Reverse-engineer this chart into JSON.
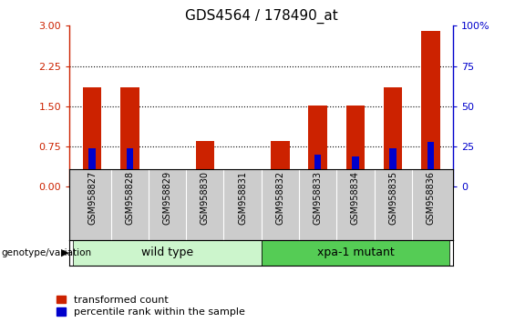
{
  "title": "GDS4564 / 178490_at",
  "samples": [
    "GSM958827",
    "GSM958828",
    "GSM958829",
    "GSM958830",
    "GSM958831",
    "GSM958832",
    "GSM958833",
    "GSM958834",
    "GSM958835",
    "GSM958836"
  ],
  "transformed_count": [
    1.85,
    1.85,
    0.02,
    0.85,
    0.02,
    0.85,
    1.52,
    1.52,
    1.85,
    2.9
  ],
  "percentile_rank_pct": [
    24,
    24,
    1,
    7,
    1,
    7,
    20,
    19,
    24,
    28
  ],
  "ylim_left": [
    0,
    3
  ],
  "ylim_right": [
    0,
    100
  ],
  "yticks_left": [
    0,
    0.75,
    1.5,
    2.25,
    3
  ],
  "yticks_right": [
    0,
    25,
    50,
    75,
    100
  ],
  "bar_width": 0.5,
  "blue_bar_width": 0.18,
  "bar_color_red": "#cc2200",
  "bar_color_blue": "#0000cc",
  "ylabel_left_color": "#cc2200",
  "ylabel_right_color": "#0000cc",
  "background_plot": "#ffffff",
  "background_xticklabels": "#cccccc",
  "wt_color": "#ccf5cc",
  "xpa_color": "#55cc55",
  "legend_red_label": "transformed count",
  "legend_blue_label": "percentile rank within the sample",
  "genotype_label": "genotype/variation",
  "title_fontsize": 11,
  "tick_fontsize": 8,
  "legend_fontsize": 8,
  "group_label_fontsize": 9,
  "sample_fontsize": 7
}
